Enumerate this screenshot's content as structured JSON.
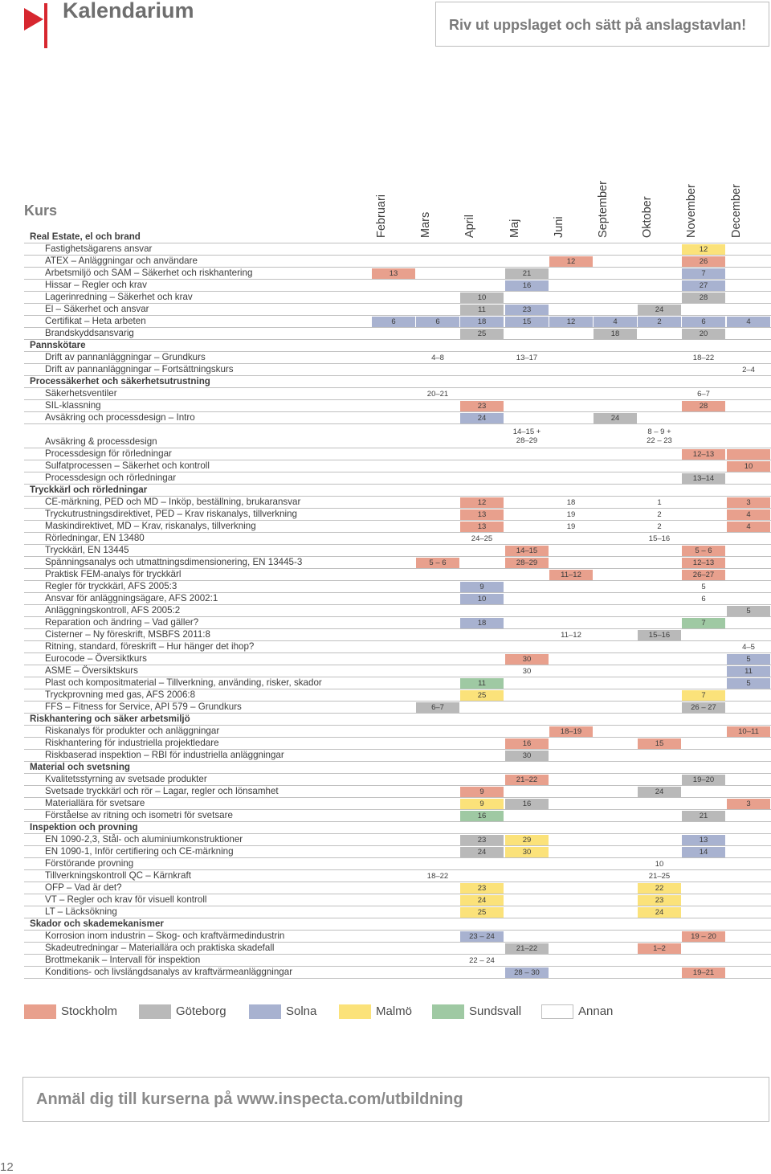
{
  "title": "Kalendarium",
  "tearoff_text": "Riv ut uppslaget och sätt på anslagstavlan!",
  "kurs_heading": "Kurs",
  "months": [
    "Februari",
    "Mars",
    "April",
    "Maj",
    "Juni",
    "September",
    "Oktober",
    "November",
    "December"
  ],
  "colors": {
    "S": "#e8a08d",
    "G": "#b9b9b9",
    "L": "#a8b2d0",
    "M": "#fbe27a",
    "U": "#9fc9a3",
    "logo": "#d7272f"
  },
  "rows": [
    {
      "t": "cat",
      "label": "Real Estate, el och brand",
      "cells": []
    },
    {
      "t": "course",
      "label": "Fastighetsägarens ansvar",
      "cells": [
        [
          7,
          "12",
          "M"
        ]
      ]
    },
    {
      "t": "course",
      "label": "ATEX – Anläggningar och användare",
      "cells": [
        [
          4,
          "12",
          "S"
        ],
        [
          7,
          "26",
          "S"
        ]
      ]
    },
    {
      "t": "course",
      "label": "Arbetsmiljö och SAM – Säkerhet och riskhantering",
      "cells": [
        [
          0,
          "13",
          "S"
        ],
        [
          3,
          "21",
          "G"
        ],
        [
          7,
          "7",
          "L"
        ]
      ]
    },
    {
      "t": "course",
      "label": "Hissar – Regler och krav",
      "cells": [
        [
          3,
          "16",
          "L"
        ],
        [
          7,
          "27",
          "L"
        ]
      ]
    },
    {
      "t": "course",
      "label": "Lagerinredning – Säkerhet och krav",
      "cells": [
        [
          2,
          "10",
          "G"
        ],
        [
          7,
          "28",
          "G"
        ]
      ]
    },
    {
      "t": "course",
      "label": "El – Säkerhet och ansvar",
      "cells": [
        [
          2,
          "11",
          "G"
        ],
        [
          3,
          "23",
          "L"
        ],
        [
          6,
          "24",
          "G"
        ]
      ]
    },
    {
      "t": "course",
      "label": "Certifikat – Heta arbeten",
      "cells": [
        [
          0,
          "6",
          "L"
        ],
        [
          1,
          "6",
          "L"
        ],
        [
          2,
          "18",
          "L"
        ],
        [
          3,
          "15",
          "L"
        ],
        [
          4,
          "12",
          "L"
        ],
        [
          5,
          "4",
          "L"
        ],
        [
          6,
          "2",
          "L"
        ],
        [
          7,
          "6",
          "L"
        ],
        [
          8,
          "4",
          "L"
        ]
      ]
    },
    {
      "t": "course",
      "label": "Brandskyddsansvarig",
      "cells": [
        [
          2,
          "25",
          "G"
        ],
        [
          5,
          "18",
          "G"
        ],
        [
          7,
          "20",
          "G"
        ]
      ]
    },
    {
      "t": "cat",
      "label": "Pannskötare",
      "cells": []
    },
    {
      "t": "course",
      "label": "Drift av pannanläggningar – Grundkurs",
      "cells": [
        [
          1,
          "4–8",
          ""
        ],
        [
          3,
          "13–17",
          ""
        ],
        [
          7,
          "18–22",
          ""
        ]
      ]
    },
    {
      "t": "course",
      "label": "Drift av pannanläggningar – Fortsättningskurs",
      "cells": [
        [
          8,
          "2–4",
          ""
        ]
      ]
    },
    {
      "t": "cat",
      "label": "Processäkerhet och säkerhetsutrustning",
      "cells": []
    },
    {
      "t": "course",
      "label": "Säkerhetsventiler",
      "cells": [
        [
          1,
          "20–21",
          ""
        ],
        [
          7,
          "6–7",
          ""
        ]
      ]
    },
    {
      "t": "course",
      "label": "SIL-klassning",
      "cells": [
        [
          2,
          "23",
          "S"
        ],
        [
          7,
          "28",
          "S"
        ]
      ]
    },
    {
      "t": "course",
      "label": "Avsäkring och processdesign – Intro",
      "cells": [
        [
          2,
          "24",
          "L"
        ],
        [
          5,
          "24",
          "G"
        ]
      ]
    },
    {
      "t": "course",
      "label": "Avsäkring & processdesign",
      "h": 30,
      "cells": [
        [
          3,
          "14–15 +|28–29",
          ""
        ],
        [
          6,
          "8 – 9 +|22 – 23",
          ""
        ]
      ]
    },
    {
      "t": "course",
      "label": "Processdesign för rörledningar",
      "cells": [
        [
          7,
          "12–13",
          "S"
        ],
        [
          8,
          "",
          "S"
        ]
      ]
    },
    {
      "t": "course",
      "label": "Sulfatprocessen – Säkerhet och kontroll",
      "cells": [
        [
          8,
          "10",
          "S"
        ]
      ]
    },
    {
      "t": "course",
      "label": "Processdesign och rörledningar",
      "cells": [
        [
          7,
          "13–14",
          "G"
        ]
      ]
    },
    {
      "t": "cat",
      "label": "Tryckkärl och rörledningar",
      "cells": []
    },
    {
      "t": "course",
      "label": "CE-märkning, PED och MD – Inköp, beställning, brukaransvar",
      "cells": [
        [
          2,
          "12",
          "S"
        ],
        [
          4,
          "18",
          ""
        ],
        [
          6,
          "1",
          ""
        ],
        [
          8,
          "3",
          "S"
        ]
      ]
    },
    {
      "t": "course",
      "label": "Tryckutrustningsdirektivet, PED – Krav riskanalys, tillverkning",
      "cells": [
        [
          2,
          "13",
          "S"
        ],
        [
          4,
          "19",
          ""
        ],
        [
          6,
          "2",
          ""
        ],
        [
          8,
          "4",
          "S"
        ]
      ]
    },
    {
      "t": "course",
      "label": "Maskindirektivet, MD – Krav, riskanalys, tillverkning",
      "cells": [
        [
          2,
          "13",
          "S"
        ],
        [
          4,
          "19",
          ""
        ],
        [
          6,
          "2",
          ""
        ],
        [
          8,
          "4",
          "S"
        ]
      ]
    },
    {
      "t": "course",
      "label": "Rörledningar, EN 13480",
      "cells": [
        [
          2,
          "24–25",
          ""
        ],
        [
          6,
          "15–16",
          ""
        ]
      ]
    },
    {
      "t": "course",
      "label": "Tryckkärl, EN 13445",
      "cells": [
        [
          3,
          "14–15",
          "S"
        ],
        [
          7,
          "5 – 6",
          "S"
        ]
      ]
    },
    {
      "t": "course",
      "label": "Spänningsanalys och utmattningsdimensionering, EN 13445-3",
      "cells": [
        [
          1,
          "5 – 6",
          "S"
        ],
        [
          3,
          "28–29",
          "S"
        ],
        [
          7,
          "12–13",
          "S"
        ]
      ]
    },
    {
      "t": "course",
      "label": "Praktisk FEM-analys för tryckkärl",
      "cells": [
        [
          4,
          "11–12",
          "S"
        ],
        [
          7,
          "26–27",
          "S"
        ]
      ]
    },
    {
      "t": "course",
      "label": "Regler för tryckkärl, AFS 2005:3",
      "cells": [
        [
          2,
          "9",
          "L"
        ],
        [
          7,
          "5",
          ""
        ]
      ]
    },
    {
      "t": "course",
      "label": "Ansvar för anläggningsägare, AFS 2002:1",
      "cells": [
        [
          2,
          "10",
          "L"
        ],
        [
          7,
          "6",
          ""
        ]
      ]
    },
    {
      "t": "course",
      "label": "Anläggningskontroll, AFS 2005:2",
      "cells": [
        [
          8,
          "5",
          "G"
        ]
      ]
    },
    {
      "t": "course",
      "label": "Reparation och ändring – Vad gäller?",
      "cells": [
        [
          2,
          "18",
          "L"
        ],
        [
          7,
          "7",
          "U"
        ]
      ]
    },
    {
      "t": "course",
      "label": "Cisterner – Ny föreskrift, MSBFS 2011:8",
      "cells": [
        [
          4,
          "11–12",
          ""
        ],
        [
          6,
          "15–16",
          "G"
        ]
      ]
    },
    {
      "t": "course",
      "label": "Ritning, standard, föreskrift – Hur hänger det ihop?",
      "cells": [
        [
          8,
          "4–5",
          ""
        ]
      ]
    },
    {
      "t": "course",
      "label": "Eurocode – Översiktkurs",
      "cells": [
        [
          3,
          "30",
          "S"
        ],
        [
          8,
          "5",
          "L"
        ]
      ]
    },
    {
      "t": "course",
      "label": "ASME – Översiktskurs",
      "cells": [
        [
          3,
          "30",
          ""
        ],
        [
          8,
          "11",
          "L"
        ]
      ]
    },
    {
      "t": "course",
      "label": "Plast och kompositmaterial – Tillverkning, använding, risker, skador",
      "cells": [
        [
          2,
          "11",
          "U"
        ],
        [
          8,
          "5",
          "L"
        ]
      ]
    },
    {
      "t": "course",
      "label": "Tryckprovning med gas, AFS 2006:8",
      "cells": [
        [
          2,
          "25",
          "M"
        ],
        [
          7,
          "7",
          "M"
        ]
      ]
    },
    {
      "t": "course",
      "label": "FFS – Fitness for Service, API 579 – Grundkurs",
      "cells": [
        [
          1,
          "6–7",
          "G"
        ],
        [
          7,
          "26 – 27",
          "G"
        ]
      ]
    },
    {
      "t": "cat",
      "label": "Riskhantering och säker arbetsmiljö",
      "cells": []
    },
    {
      "t": "course",
      "label": "Riskanalys för produkter och anläggningar",
      "cells": [
        [
          4,
          "18–19",
          "S"
        ],
        [
          8,
          "10–11",
          "S"
        ]
      ]
    },
    {
      "t": "course",
      "label": "Riskhantering för industriella projektledare",
      "cells": [
        [
          3,
          "16",
          "S"
        ],
        [
          6,
          "15",
          "S"
        ]
      ]
    },
    {
      "t": "course",
      "label": "Riskbaserad inspektion – RBI för industriella anläggningar",
      "cells": [
        [
          3,
          "30",
          "G"
        ]
      ]
    },
    {
      "t": "cat",
      "label": "Material och svetsning",
      "cells": []
    },
    {
      "t": "course",
      "label": "Kvalitetsstyrning av svetsade produkter",
      "cells": [
        [
          3,
          "21–22",
          "S"
        ],
        [
          7,
          "19–20",
          "G"
        ]
      ]
    },
    {
      "t": "course",
      "label": "Svetsade tryckkärl och rör – Lagar, regler och lönsamhet",
      "cells": [
        [
          2,
          "9",
          "S"
        ],
        [
          6,
          "24",
          "G"
        ]
      ]
    },
    {
      "t": "course",
      "label": "Materiallära för svetsare",
      "cells": [
        [
          2,
          "9",
          "M"
        ],
        [
          3,
          "16",
          "G"
        ],
        [
          8,
          "3",
          "S"
        ]
      ]
    },
    {
      "t": "course",
      "label": "Förståelse av ritning och isometri för svetsare",
      "cells": [
        [
          2,
          "16",
          "U"
        ],
        [
          7,
          "21",
          "G"
        ]
      ]
    },
    {
      "t": "cat",
      "label": "Inspektion och provning",
      "cells": []
    },
    {
      "t": "course",
      "label": "EN 1090-2,3, Stål- och aluminiumkonstruktioner",
      "cells": [
        [
          2,
          "23",
          "G"
        ],
        [
          3,
          "29",
          "M"
        ],
        [
          7,
          "13",
          "L"
        ]
      ]
    },
    {
      "t": "course",
      "label": "EN 1090-1, Inför certifiering och CE-märkning",
      "cells": [
        [
          2,
          "24",
          "G"
        ],
        [
          3,
          "30",
          "M"
        ],
        [
          7,
          "14",
          "L"
        ]
      ]
    },
    {
      "t": "course",
      "label": "Förstörande provning",
      "cells": [
        [
          6,
          "10",
          ""
        ]
      ]
    },
    {
      "t": "course",
      "label": "Tillverkningskontroll QC – Kärnkraft",
      "cells": [
        [
          1,
          "18–22",
          ""
        ],
        [
          6,
          "21–25",
          ""
        ]
      ]
    },
    {
      "t": "course",
      "label": "OFP – Vad är det?",
      "cells": [
        [
          2,
          "23",
          "M"
        ],
        [
          6,
          "22",
          "M"
        ]
      ]
    },
    {
      "t": "course",
      "label": "VT – Regler och krav för visuell kontroll",
      "cells": [
        [
          2,
          "24",
          "M"
        ],
        [
          6,
          "23",
          "M"
        ]
      ]
    },
    {
      "t": "course",
      "label": "LT – Läcksökning",
      "cells": [
        [
          2,
          "25",
          "M"
        ],
        [
          6,
          "24",
          "M"
        ]
      ]
    },
    {
      "t": "cat",
      "label": "Skador och skademekanismer",
      "cells": []
    },
    {
      "t": "course",
      "label": "Korrosion inom industrin – Skog- och kraftvärmedindustrin",
      "cells": [
        [
          2,
          "23 – 24",
          "L"
        ],
        [
          7,
          "19 – 20",
          "S"
        ]
      ]
    },
    {
      "t": "course",
      "label": "Skadeutredningar – Materiallära och praktiska skadefall",
      "cells": [
        [
          3,
          "21–22",
          "G"
        ],
        [
          6,
          "1–2",
          "S"
        ]
      ]
    },
    {
      "t": "course",
      "label": "Brottmekanik – Intervall för inspektion",
      "cells": [
        [
          2,
          "22 – 24",
          ""
        ]
      ]
    },
    {
      "t": "course",
      "label": "Konditions- och livslängdsanalys av kraftvärmeanläggningar",
      "cells": [
        [
          3,
          "28 – 30",
          "L"
        ],
        [
          7,
          "19–21",
          "S"
        ]
      ]
    }
  ],
  "legend": [
    {
      "label": "Stockholm",
      "color": "#e8a08d"
    },
    {
      "label": "Göteborg",
      "color": "#b9b9b9"
    },
    {
      "label": "Solna",
      "color": "#a8b2d0"
    },
    {
      "label": "Malmö",
      "color": "#fbe27a"
    },
    {
      "label": "Sundsvall",
      "color": "#9fc9a3"
    },
    {
      "label": "Annan",
      "color": "#ffffff"
    }
  ],
  "footer_text": "Anmäl dig till kurserna på www.inspecta.com/utbildning",
  "page_number": "12"
}
